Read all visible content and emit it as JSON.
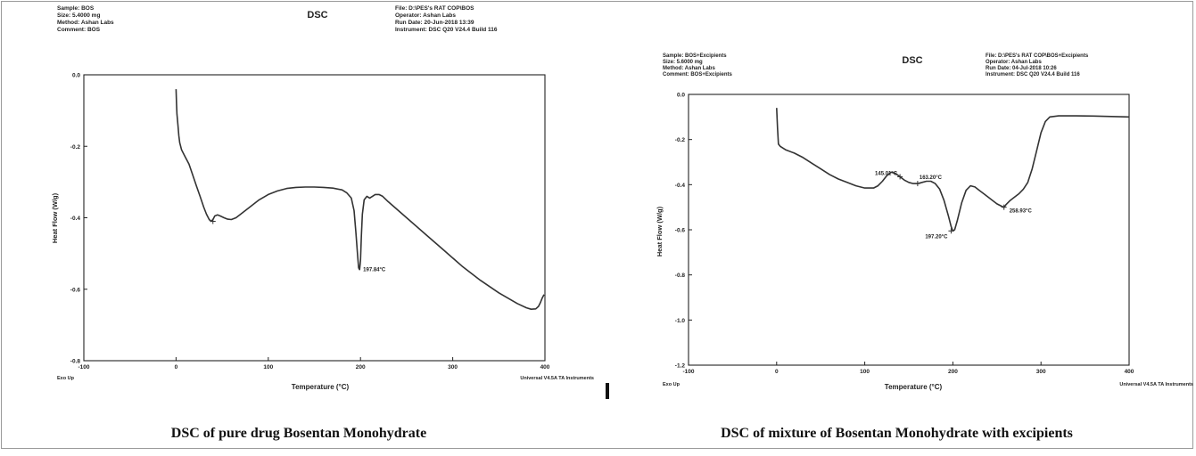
{
  "captions": {
    "left": "DSC of pure drug Bosentan Monohydrate",
    "right": "DSC of mixture of Bosentan Monohydrate with excipients"
  },
  "chart_data": [
    {
      "type": "line",
      "title": "DSC",
      "header_left": [
        "Sample: BOS",
        "Size: 5.4000 mg",
        "Method: Ashan Labs",
        "Comment: BOS"
      ],
      "header_right": [
        "File: D:\\PES's RAT COP\\BOS",
        "Operator: Ashan Labs",
        "Run Date: 20-Jun-2018 13:39",
        "Instrument: DSC Q20 V24.4 Build 116"
      ],
      "xlabel": "Temperature (°C)",
      "ylabel": "Heat Flow (W/g)",
      "footer_left": "Exo Up",
      "footer_right": "Universal V4.5A TA Instruments",
      "xlim": [
        -100,
        400
      ],
      "ylim": [
        -0.8,
        0.0
      ],
      "xticks": [
        "-100",
        "0",
        "100",
        "200",
        "300",
        "400"
      ],
      "yticks": [
        "0.0",
        "-0.2",
        "-0.4",
        "-0.6",
        "-0.8"
      ],
      "series": [
        {
          "x": [
            0,
            0.5,
            1,
            2,
            3,
            4,
            6,
            10,
            14,
            18,
            22,
            26,
            30,
            33,
            36,
            38,
            40,
            42,
            45,
            48,
            52,
            56,
            60,
            65,
            70,
            80,
            90,
            100,
            110,
            120,
            130,
            140,
            150,
            160,
            170,
            180,
            185,
            190,
            193,
            195,
            197,
            198,
            199,
            200,
            201,
            202,
            204,
            207,
            210,
            213,
            216,
            220,
            224,
            230,
            250,
            270,
            290,
            310,
            330,
            350,
            370,
            380,
            385,
            390,
            393,
            395,
            397,
            399
          ],
          "y": [
            -0.04,
            -0.08,
            -0.11,
            -0.14,
            -0.17,
            -0.19,
            -0.21,
            -0.23,
            -0.25,
            -0.28,
            -0.31,
            -0.34,
            -0.37,
            -0.39,
            -0.405,
            -0.41,
            -0.405,
            -0.395,
            -0.392,
            -0.395,
            -0.4,
            -0.404,
            -0.405,
            -0.4,
            -0.39,
            -0.37,
            -0.35,
            -0.335,
            -0.325,
            -0.318,
            -0.315,
            -0.314,
            -0.314,
            -0.315,
            -0.317,
            -0.322,
            -0.33,
            -0.345,
            -0.38,
            -0.44,
            -0.51,
            -0.54,
            -0.545,
            -0.52,
            -0.45,
            -0.39,
            -0.35,
            -0.34,
            -0.345,
            -0.34,
            -0.335,
            -0.335,
            -0.34,
            -0.355,
            -0.4,
            -0.445,
            -0.49,
            -0.535,
            -0.575,
            -0.61,
            -0.64,
            -0.652,
            -0.656,
            -0.655,
            -0.648,
            -0.638,
            -0.625,
            -0.615
          ]
        }
      ],
      "markers": [
        {
          "x": 40,
          "y": -0.41
        }
      ],
      "annotations": [
        {
          "text": "197.84°C",
          "x": 199,
          "y": -0.545
        }
      ]
    },
    {
      "type": "line",
      "title": "DSC",
      "header_left": [
        "Sample: BOS+Excipients",
        "Size: 5.6000 mg",
        "Method: Ashan Labs",
        "Comment: BOS+Excipients"
      ],
      "header_right": [
        "File: D:\\PES's RAT COP\\BOS+Excipients",
        "Operator: Ashan Labs",
        "Run Date: 04-Jul-2018 10:26",
        "Instrument: DSC Q20 V24.4 Build 116"
      ],
      "xlabel": "Temperature (°C)",
      "ylabel": "Heat Flow (W/g)",
      "footer_left": "Exo Up",
      "footer_right": "Universal V4.5A TA Instruments",
      "xlim": [
        -100,
        400
      ],
      "ylim": [
        -1.2,
        0.0
      ],
      "xticks": [
        "-100",
        "0",
        "100",
        "200",
        "300",
        "400"
      ],
      "yticks": [
        "0.0",
        "-0.2",
        "-0.4",
        "-0.6",
        "-0.8",
        "-1.0",
        "-1.2"
      ],
      "series": [
        {
          "x": [
            0,
            1,
            2,
            4,
            10,
            20,
            30,
            40,
            50,
            60,
            70,
            80,
            90,
            100,
            110,
            115,
            120,
            125,
            130,
            135,
            140,
            145,
            150,
            155,
            160,
            165,
            170,
            175,
            180,
            185,
            190,
            195,
            198,
            200,
            202,
            205,
            210,
            215,
            220,
            225,
            230,
            235,
            240,
            245,
            250,
            255,
            258,
            260,
            265,
            270,
            275,
            280,
            285,
            290,
            295,
            300,
            305,
            310,
            320,
            340,
            360,
            380,
            400
          ],
          "y": [
            -0.06,
            -0.15,
            -0.22,
            -0.23,
            -0.245,
            -0.26,
            -0.28,
            -0.305,
            -0.33,
            -0.355,
            -0.375,
            -0.39,
            -0.405,
            -0.415,
            -0.415,
            -0.405,
            -0.385,
            -0.36,
            -0.345,
            -0.35,
            -0.365,
            -0.38,
            -0.39,
            -0.395,
            -0.395,
            -0.39,
            -0.385,
            -0.385,
            -0.395,
            -0.42,
            -0.47,
            -0.54,
            -0.585,
            -0.605,
            -0.6,
            -0.56,
            -0.48,
            -0.425,
            -0.405,
            -0.41,
            -0.425,
            -0.44,
            -0.455,
            -0.47,
            -0.485,
            -0.495,
            -0.5,
            -0.49,
            -0.47,
            -0.455,
            -0.44,
            -0.42,
            -0.39,
            -0.33,
            -0.25,
            -0.17,
            -0.12,
            -0.1,
            -0.095,
            -0.095,
            -0.096,
            -0.098,
            -0.1
          ]
        }
      ],
      "markers": [
        {
          "x": 140,
          "y": -0.365
        },
        {
          "x": 160,
          "y": -0.395
        },
        {
          "x": 198,
          "y": -0.605
        },
        {
          "x": 258,
          "y": -0.5
        }
      ],
      "annotations": [
        {
          "text": "145.01°C",
          "x": 140,
          "y": -0.365
        },
        {
          "text": "163.20°C",
          "x": 160,
          "y": -0.395
        },
        {
          "text": "197.20°C",
          "x": 198,
          "y": -0.605
        },
        {
          "text": "258.93°C",
          "x": 258,
          "y": -0.5
        }
      ]
    }
  ]
}
